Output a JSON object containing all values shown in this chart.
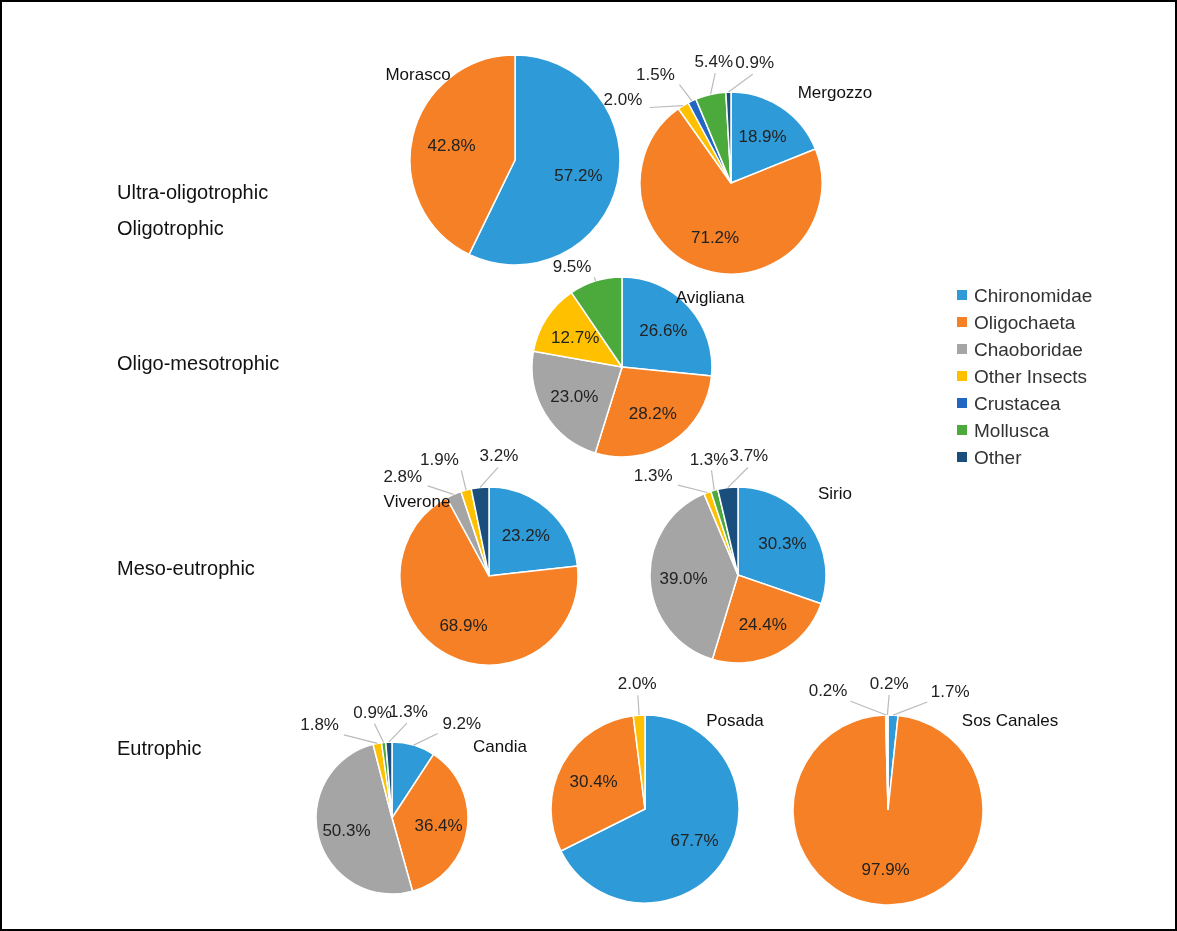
{
  "chart_data": [
    {
      "type": "other",
      "annotations": [
        "Ultra-oligotrophic",
        "Oligotrophic",
        "Oligo-mesotrophic",
        "Meso-eutrophic",
        "Eutrophic"
      ]
    },
    {
      "type": "pie",
      "title": "Morasco",
      "categories": [
        null,
        null
      ],
      "values": [
        57.2,
        42.8
      ],
      "value_labels": [
        "57.2%",
        "42.8%"
      ],
      "colors": [
        "#2e9bd8",
        "#f58025"
      ]
    },
    {
      "type": "pie",
      "title": "Mergozzo",
      "categories": [
        null,
        null,
        null,
        null,
        null,
        null
      ],
      "values": [
        18.9,
        71.2,
        2.0,
        1.5,
        5.4,
        0.9
      ],
      "value_labels": [
        "18.9%",
        "71.2%",
        "2.0%",
        "1.5%",
        "5.4%",
        "0.9%"
      ],
      "colors": [
        "#2e9bd8",
        "#f58025",
        "#ffc000",
        "#2266c4",
        "#4caa3c",
        "#1a4e7c"
      ]
    },
    {
      "type": "pie",
      "title": "Avigliana",
      "categories": [
        null,
        null,
        null,
        null,
        null
      ],
      "values": [
        26.6,
        28.2,
        23.0,
        12.7,
        9.5
      ],
      "value_labels": [
        "26.6%",
        "28.2%",
        "23.0%",
        "12.7%",
        "9.5%"
      ],
      "colors": [
        "#2e9bd8",
        "#f58025",
        "#a5a5a5",
        "#ffc000",
        "#4caa3c"
      ]
    },
    {
      "type": "pie",
      "title": "Viverone",
      "categories": [
        null,
        null,
        null,
        null,
        null
      ],
      "values": [
        23.2,
        68.9,
        2.8,
        1.9,
        3.2
      ],
      "value_labels": [
        "23.2%",
        "68.9%",
        "2.8%",
        "1.9%",
        "3.2%"
      ],
      "colors": [
        "#2e9bd8",
        "#f58025",
        "#a5a5a5",
        "#ffc000",
        "#1a4e7c"
      ]
    },
    {
      "type": "pie",
      "title": "Sirio",
      "categories": [
        null,
        null,
        null,
        null,
        null,
        null
      ],
      "values": [
        30.3,
        24.4,
        39.0,
        1.3,
        1.3,
        3.7
      ],
      "value_labels": [
        "30.3%",
        "24.4%",
        "39.0%",
        "1.3%",
        "1.3%",
        "3.7%"
      ],
      "colors": [
        "#2e9bd8",
        "#f58025",
        "#a5a5a5",
        "#ffc000",
        "#4caa3c",
        "#1a4e7c"
      ]
    },
    {
      "type": "pie",
      "title": "Candia",
      "categories": [
        null,
        null,
        null,
        null,
        null,
        null
      ],
      "values": [
        9.2,
        36.4,
        50.3,
        1.8,
        0.9,
        1.3
      ],
      "value_labels": [
        "9.2%",
        "36.4%",
        "50.3%",
        "1.8%",
        "0.9%",
        "1.3%"
      ],
      "colors": [
        "#2e9bd8",
        "#f58025",
        "#a5a5a5",
        "#ffc000",
        "#4caa3c",
        "#1a4e7c"
      ]
    },
    {
      "type": "pie",
      "title": "Posada",
      "categories": [
        null,
        null,
        null
      ],
      "values": [
        67.7,
        30.4,
        2.0
      ],
      "value_labels": [
        "67.7%",
        "30.4%",
        "2.0%"
      ],
      "colors": [
        "#2e9bd8",
        "#f58025",
        "#ffc000"
      ]
    },
    {
      "type": "pie",
      "title": "Sos Canales",
      "categories": [
        null,
        null,
        null,
        null
      ],
      "values": [
        1.7,
        97.9,
        0.2,
        0.2
      ],
      "value_labels": [
        "1.7%",
        "97.9%",
        "0.2%",
        "0.2%"
      ],
      "colors": [
        "#2e9bd8",
        "#f58025",
        "#a5a5a5",
        "#ffc000"
      ]
    },
    {
      "type": "other",
      "categories": [
        "Chironomidae",
        "Oligochaeta",
        "Chaoboridae",
        "Other Insects",
        "Crustacea",
        "Mollusca",
        "Other"
      ],
      "colors": [
        "#2e9bd8",
        "#f58025",
        "#a5a5a5",
        "#ffc000",
        "#2266c4",
        "#4caa3c",
        "#1a4e7c"
      ]
    }
  ]
}
